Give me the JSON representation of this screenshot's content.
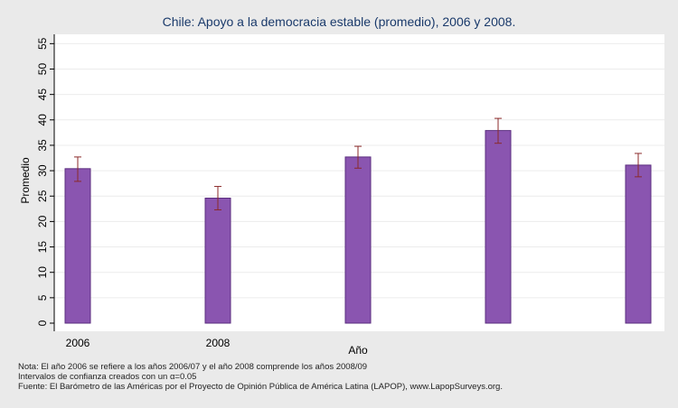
{
  "chart_data": {
    "type": "bar",
    "title": "Chile: Apoyo a la democracia estable (promedio), 2006 y 2008.",
    "xlabel": "Año",
    "ylabel": "Promedio",
    "ylim": [
      0,
      57
    ],
    "yticks": [
      0,
      5,
      10,
      15,
      20,
      25,
      30,
      35,
      40,
      45,
      50,
      55
    ],
    "grid": true,
    "categories": [
      "2006",
      "2008",
      "",
      "",
      ""
    ],
    "values": [
      30.4,
      24.6,
      32.7,
      37.9,
      31.1
    ],
    "ci_low": [
      27.9,
      22.3,
      30.5,
      35.4,
      28.8
    ],
    "ci_high": [
      32.7,
      26.9,
      34.8,
      40.3,
      33.4
    ],
    "colors": {
      "bar": "#8a55b0",
      "bar_edge": "#5b2e7f",
      "error_bar": "#8b2a2a",
      "grid": "#ffffff",
      "plot_bg": "#ffffff",
      "page_bg": "#eaeaea",
      "title": "#1a3a6b"
    }
  },
  "notes": {
    "line1": "Nota: El año 2006 se refiere a los años 2006/07 y el año 2008 comprende los años 2008/09",
    "line2": "Intervalos de confianza creados con un α=0.05",
    "line3": "Fuente: El Barómetro de las Américas por el Proyecto de Opinión Pública de América Latina (LAPOP), www.LapopSurveys.org."
  }
}
